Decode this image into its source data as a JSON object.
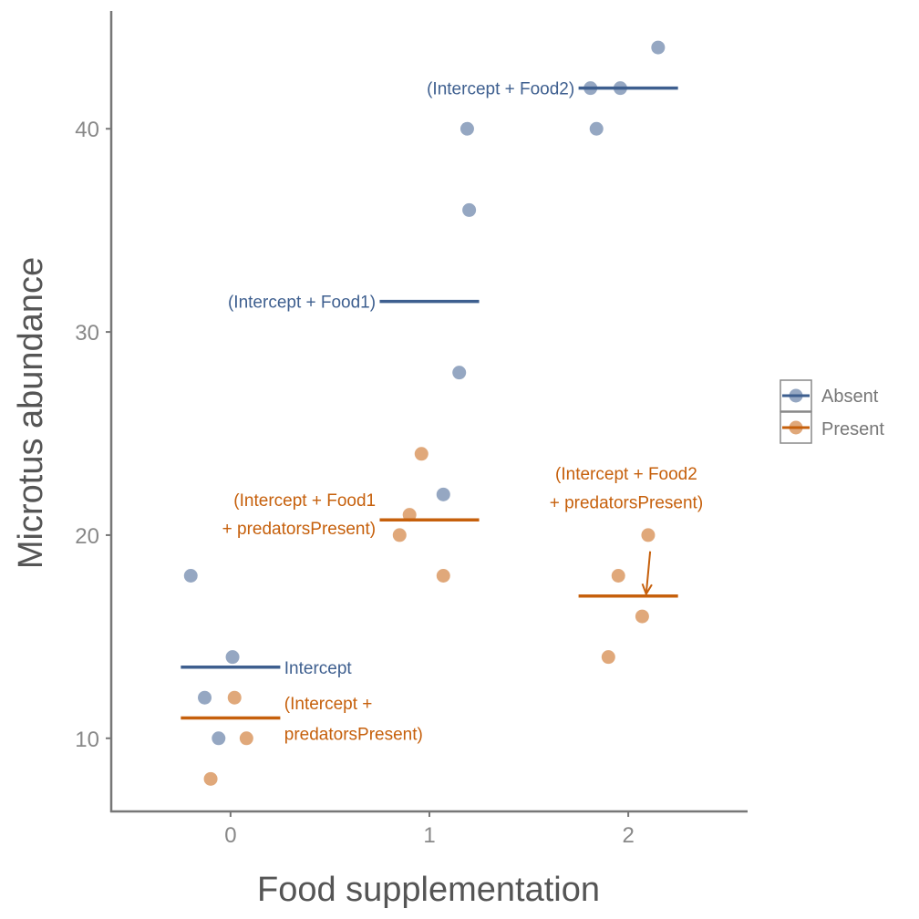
{
  "chart_data": {
    "type": "scatter",
    "xlabel": "Food supplementation",
    "ylabel": "Microtus abundance",
    "x_ticks": [
      "0",
      "1",
      "2"
    ],
    "y_ticks": [
      "10",
      "20",
      "30",
      "40"
    ],
    "xlim": [
      -0.6,
      2.6
    ],
    "ylim": [
      6.4,
      45.8
    ],
    "grid": false,
    "legend_position": "right",
    "series": [
      {
        "name": "Absent",
        "color": "#3E5F8F",
        "points": [
          {
            "x": -0.2,
            "y": 18
          },
          {
            "x": 0.01,
            "y": 14
          },
          {
            "x": -0.13,
            "y": 12
          },
          {
            "x": -0.06,
            "y": 10
          },
          {
            "x": 1.19,
            "y": 40
          },
          {
            "x": 1.2,
            "y": 36
          },
          {
            "x": 1.15,
            "y": 28
          },
          {
            "x": 1.07,
            "y": 22
          },
          {
            "x": 2.15,
            "y": 44
          },
          {
            "x": 1.81,
            "y": 42
          },
          {
            "x": 1.96,
            "y": 42
          },
          {
            "x": 1.84,
            "y": 40
          }
        ],
        "fits": [
          {
            "x_range": [
              -0.25,
              0.25
            ],
            "y": 13.5
          },
          {
            "x_range": [
              0.75,
              1.25
            ],
            "y": 31.5
          },
          {
            "x_range": [
              1.75,
              2.25
            ],
            "y": 42
          }
        ]
      },
      {
        "name": "Present",
        "color": "#C6600C",
        "points": [
          {
            "x": 0.02,
            "y": 12
          },
          {
            "x": 0.08,
            "y": 10
          },
          {
            "x": -0.1,
            "y": 8
          },
          {
            "x": 0.96,
            "y": 24
          },
          {
            "x": 0.9,
            "y": 21
          },
          {
            "x": 0.85,
            "y": 20
          },
          {
            "x": 1.07,
            "y": 18
          },
          {
            "x": 2.1,
            "y": 20
          },
          {
            "x": 1.95,
            "y": 18
          },
          {
            "x": 2.07,
            "y": 16
          },
          {
            "x": 1.9,
            "y": 14
          }
        ],
        "fits": [
          {
            "x_range": [
              -0.25,
              0.25
            ],
            "y": 11
          },
          {
            "x_range": [
              0.75,
              1.25
            ],
            "y": 20.75
          },
          {
            "x_range": [
              1.75,
              2.25
            ],
            "y": 17
          }
        ]
      }
    ],
    "annotations": [
      {
        "series": "Absent",
        "lines": [
          "Intercept"
        ],
        "x": 0.27,
        "y": 13.5,
        "anchor": "start"
      },
      {
        "series": "Present",
        "lines": [
          "(Intercept +",
          "predatorsPresent)"
        ],
        "x": 0.27,
        "y": 11,
        "anchor": "start",
        "line_ys": [
          11.7,
          10.2
        ]
      },
      {
        "series": "Absent",
        "lines": [
          "(Intercept + Food1)"
        ],
        "x": 0.73,
        "y": 31.5,
        "anchor": "end"
      },
      {
        "series": "Present",
        "lines": [
          "(Intercept + Food1",
          "+ predatorsPresent)"
        ],
        "x": 0.73,
        "y": 20.75,
        "anchor": "end",
        "line_ys": [
          21.7,
          20.3
        ]
      },
      {
        "series": "Absent",
        "lines": [
          "(Intercept + Food2)"
        ],
        "x": 1.73,
        "y": 42,
        "anchor": "end"
      },
      {
        "series": "Present",
        "lines": [
          "(Intercept + Food2",
          "+ predatorsPresent)"
        ],
        "x": 1.99,
        "y": 22,
        "anchor": "middle",
        "line_ys": [
          23.0,
          21.6
        ],
        "arrow_from": [
          2.11,
          19.2
        ],
        "arrow_to": [
          2.09,
          17.1
        ]
      }
    ]
  }
}
